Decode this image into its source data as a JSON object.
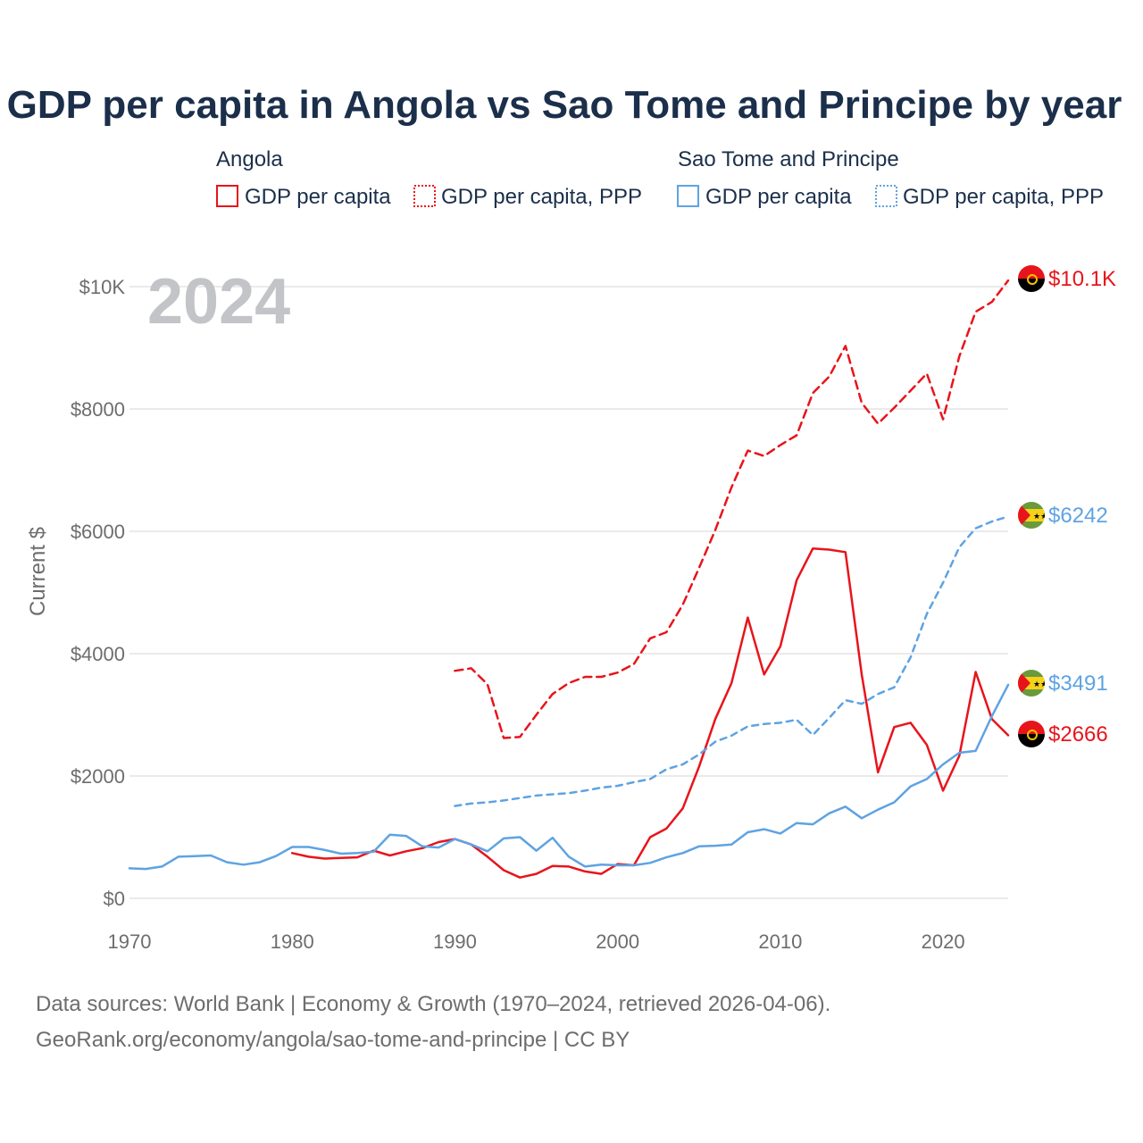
{
  "colors": {
    "angola": "#e8141b",
    "stp": "#5ea3e2",
    "title": "#1b2f4b",
    "axis_text": "#6d6d6d",
    "year": "#c2c4c7"
  },
  "chart_data": {
    "type": "line",
    "title": "GDP per capita in Angola vs Sao Tome and Principe by year",
    "xlabel": "",
    "ylabel": "Current $",
    "xlim": [
      1970,
      2024
    ],
    "ylim": [
      0,
      10000
    ],
    "x_ticks": [
      1970,
      1980,
      1990,
      2000,
      2010,
      2020
    ],
    "x_tick_labels": [
      "1970",
      "1980",
      "1990",
      "2000",
      "2010",
      "2020"
    ],
    "y_ticks": [
      0,
      2000,
      4000,
      6000,
      8000,
      10000
    ],
    "y_tick_labels": [
      "$0",
      "$2000",
      "$4000",
      "$6000",
      "$8000",
      "$10K"
    ],
    "year_label": "2024",
    "legend_groups": [
      {
        "name": "Angola",
        "items": [
          "GDP per capita",
          "GDP per capita, PPP"
        ]
      },
      {
        "name": "Sao Tome and Principe",
        "items": [
          "GDP per capita",
          "GDP per capita, PPP"
        ]
      }
    ],
    "series": [
      {
        "name": "Angola GDP per capita",
        "country": "angola",
        "style": "solid",
        "end_label": "$2666",
        "points": [
          [
            1980,
            740
          ],
          [
            1981,
            680
          ],
          [
            1982,
            650
          ],
          [
            1983,
            660
          ],
          [
            1984,
            670
          ],
          [
            1985,
            780
          ],
          [
            1986,
            700
          ],
          [
            1987,
            770
          ],
          [
            1988,
            820
          ],
          [
            1989,
            920
          ],
          [
            1990,
            970
          ],
          [
            1991,
            880
          ],
          [
            1992,
            680
          ],
          [
            1993,
            460
          ],
          [
            1994,
            340
          ],
          [
            1995,
            400
          ],
          [
            1996,
            530
          ],
          [
            1997,
            520
          ],
          [
            1998,
            440
          ],
          [
            1999,
            400
          ],
          [
            2000,
            560
          ],
          [
            2001,
            540
          ],
          [
            2002,
            1000
          ],
          [
            2003,
            1140
          ],
          [
            2004,
            1470
          ],
          [
            2005,
            2150
          ],
          [
            2006,
            2930
          ],
          [
            2007,
            3520
          ],
          [
            2008,
            4590
          ],
          [
            2009,
            3660
          ],
          [
            2010,
            4120
          ],
          [
            2011,
            5200
          ],
          [
            2012,
            5720
          ],
          [
            2013,
            5700
          ],
          [
            2014,
            5660
          ],
          [
            2015,
            3660
          ],
          [
            2016,
            2060
          ],
          [
            2017,
            2800
          ],
          [
            2018,
            2870
          ],
          [
            2019,
            2510
          ],
          [
            2020,
            1760
          ],
          [
            2021,
            2330
          ],
          [
            2022,
            3700
          ],
          [
            2023,
            2930
          ],
          [
            2024,
            2666
          ]
        ]
      },
      {
        "name": "Angola GDP per capita, PPP",
        "country": "angola",
        "style": "dashed",
        "end_label": "$10.1K",
        "points": [
          [
            1990,
            3720
          ],
          [
            1991,
            3760
          ],
          [
            1992,
            3500
          ],
          [
            1993,
            2620
          ],
          [
            1994,
            2640
          ],
          [
            1995,
            3000
          ],
          [
            1996,
            3340
          ],
          [
            1997,
            3520
          ],
          [
            1998,
            3620
          ],
          [
            1999,
            3620
          ],
          [
            2000,
            3690
          ],
          [
            2001,
            3830
          ],
          [
            2002,
            4250
          ],
          [
            2003,
            4350
          ],
          [
            2004,
            4800
          ],
          [
            2005,
            5400
          ],
          [
            2006,
            6020
          ],
          [
            2007,
            6720
          ],
          [
            2008,
            7320
          ],
          [
            2009,
            7230
          ],
          [
            2010,
            7410
          ],
          [
            2011,
            7570
          ],
          [
            2012,
            8260
          ],
          [
            2013,
            8530
          ],
          [
            2014,
            9030
          ],
          [
            2015,
            8100
          ],
          [
            2016,
            7760
          ],
          [
            2017,
            8020
          ],
          [
            2018,
            8300
          ],
          [
            2019,
            8580
          ],
          [
            2020,
            7830
          ],
          [
            2021,
            8860
          ],
          [
            2022,
            9590
          ],
          [
            2023,
            9750
          ],
          [
            2024,
            10100
          ]
        ]
      },
      {
        "name": "Sao Tome and Principe GDP per capita",
        "country": "stp",
        "style": "solid",
        "end_label": "$3491",
        "points": [
          [
            1970,
            490
          ],
          [
            1971,
            480
          ],
          [
            1972,
            520
          ],
          [
            1973,
            680
          ],
          [
            1974,
            690
          ],
          [
            1975,
            700
          ],
          [
            1976,
            590
          ],
          [
            1977,
            550
          ],
          [
            1978,
            590
          ],
          [
            1979,
            690
          ],
          [
            1980,
            840
          ],
          [
            1981,
            840
          ],
          [
            1982,
            790
          ],
          [
            1983,
            730
          ],
          [
            1984,
            740
          ],
          [
            1985,
            760
          ],
          [
            1986,
            1040
          ],
          [
            1987,
            1020
          ],
          [
            1988,
            850
          ],
          [
            1989,
            830
          ],
          [
            1990,
            970
          ],
          [
            1991,
            880
          ],
          [
            1992,
            770
          ],
          [
            1993,
            980
          ],
          [
            1994,
            1000
          ],
          [
            1995,
            780
          ],
          [
            1996,
            990
          ],
          [
            1997,
            680
          ],
          [
            1998,
            520
          ],
          [
            1999,
            550
          ],
          [
            2000,
            540
          ],
          [
            2001,
            540
          ],
          [
            2002,
            580
          ],
          [
            2003,
            670
          ],
          [
            2004,
            740
          ],
          [
            2005,
            850
          ],
          [
            2006,
            860
          ],
          [
            2007,
            880
          ],
          [
            2008,
            1080
          ],
          [
            2009,
            1130
          ],
          [
            2010,
            1060
          ],
          [
            2011,
            1230
          ],
          [
            2012,
            1210
          ],
          [
            2013,
            1390
          ],
          [
            2014,
            1500
          ],
          [
            2015,
            1310
          ],
          [
            2016,
            1450
          ],
          [
            2017,
            1570
          ],
          [
            2018,
            1830
          ],
          [
            2019,
            1950
          ],
          [
            2020,
            2190
          ],
          [
            2021,
            2380
          ],
          [
            2022,
            2410
          ],
          [
            2023,
            2980
          ],
          [
            2024,
            3491
          ]
        ]
      },
      {
        "name": "Sao Tome and Principe GDP per capita, PPP",
        "country": "stp",
        "style": "dotted",
        "end_label": "$6242",
        "points": [
          [
            1990,
            1510
          ],
          [
            1991,
            1550
          ],
          [
            1992,
            1570
          ],
          [
            1993,
            1600
          ],
          [
            1994,
            1640
          ],
          [
            1995,
            1680
          ],
          [
            1996,
            1700
          ],
          [
            1997,
            1720
          ],
          [
            1998,
            1760
          ],
          [
            1999,
            1810
          ],
          [
            2000,
            1840
          ],
          [
            2001,
            1900
          ],
          [
            2002,
            1950
          ],
          [
            2003,
            2110
          ],
          [
            2004,
            2190
          ],
          [
            2005,
            2350
          ],
          [
            2006,
            2560
          ],
          [
            2007,
            2660
          ],
          [
            2008,
            2810
          ],
          [
            2009,
            2850
          ],
          [
            2010,
            2870
          ],
          [
            2011,
            2920
          ],
          [
            2012,
            2670
          ],
          [
            2013,
            2950
          ],
          [
            2014,
            3240
          ],
          [
            2015,
            3180
          ],
          [
            2016,
            3340
          ],
          [
            2017,
            3450
          ],
          [
            2018,
            3940
          ],
          [
            2019,
            4650
          ],
          [
            2020,
            5160
          ],
          [
            2021,
            5740
          ],
          [
            2022,
            6050
          ],
          [
            2023,
            6160
          ],
          [
            2024,
            6242
          ]
        ]
      }
    ]
  },
  "footer": {
    "source_line": "Data sources: World Bank | Economy & Growth (1970–2024, retrieved 2026-04-06).",
    "credit_line": "GeoRank.org/economy/angola/sao-tome-and-principe | CC BY"
  }
}
